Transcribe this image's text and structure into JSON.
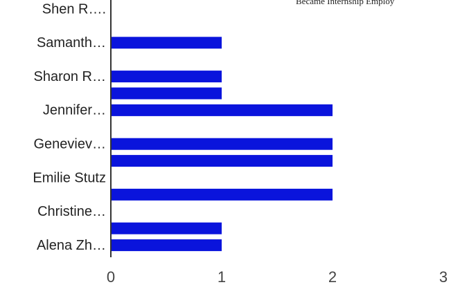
{
  "chart_data": {
    "type": "bar",
    "orientation": "horizontal",
    "title": "Became Internship Employ",
    "categories": [
      "Shen R….",
      null,
      "Samanth…",
      null,
      "Sharon R…",
      null,
      "Jennifer…",
      null,
      "Geneviev…",
      null,
      "Emilie Stutz",
      null,
      "Christine…",
      null,
      "Alena Zh…"
    ],
    "values": [
      0,
      0,
      1,
      0,
      1,
      1,
      2,
      0,
      2,
      2,
      0,
      2,
      0,
      1,
      1
    ],
    "color": "#0a14dc",
    "xlim": [
      0,
      3
    ],
    "xticks": [
      0,
      1,
      2,
      3
    ],
    "grid": false
  }
}
